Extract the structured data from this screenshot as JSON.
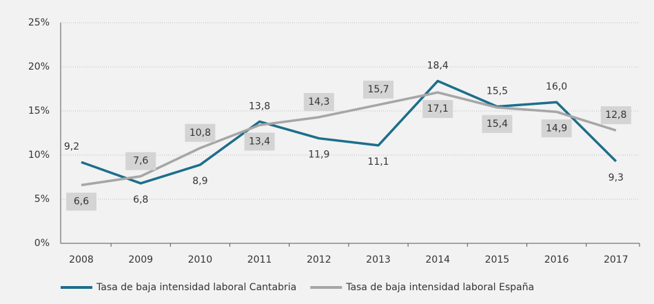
{
  "chart_data": {
    "type": "line",
    "categories": [
      "2008",
      "2009",
      "2010",
      "2011",
      "2012",
      "2013",
      "2014",
      "2015",
      "2016",
      "2017"
    ],
    "series": [
      {
        "name": "Tasa de baja intensidad laboral Cantabria",
        "color": "#1d6e8b",
        "values": [
          9.2,
          6.8,
          8.9,
          13.8,
          11.9,
          11.1,
          18.4,
          15.5,
          16.0,
          9.3
        ],
        "value_labels": [
          "9,2",
          "6,8",
          "8,9",
          "13,8",
          "11,9",
          "11,1",
          "18,4",
          "15,5",
          "16,0",
          "9,3"
        ]
      },
      {
        "name": "Tasa de baja intensidad laboral España",
        "color": "#a6a6a6",
        "values": [
          6.6,
          7.6,
          10.8,
          13.4,
          14.3,
          15.7,
          17.1,
          15.4,
          14.9,
          12.8
        ],
        "value_labels": [
          "6,6",
          "7,6",
          "10,8",
          "13,4",
          "14,3",
          "15,7",
          "17,1",
          "15,4",
          "14,9",
          "12,8"
        ]
      }
    ],
    "ylim": [
      0,
      25
    ],
    "yticks": [
      {
        "value": 0,
        "label": "0%"
      },
      {
        "value": 5,
        "label": "5%"
      },
      {
        "value": 10,
        "label": "10%"
      },
      {
        "value": 15,
        "label": "15%"
      },
      {
        "value": 20,
        "label": "20%"
      },
      {
        "value": 25,
        "label": "25%"
      }
    ],
    "grid": true,
    "legend": "bottom"
  }
}
